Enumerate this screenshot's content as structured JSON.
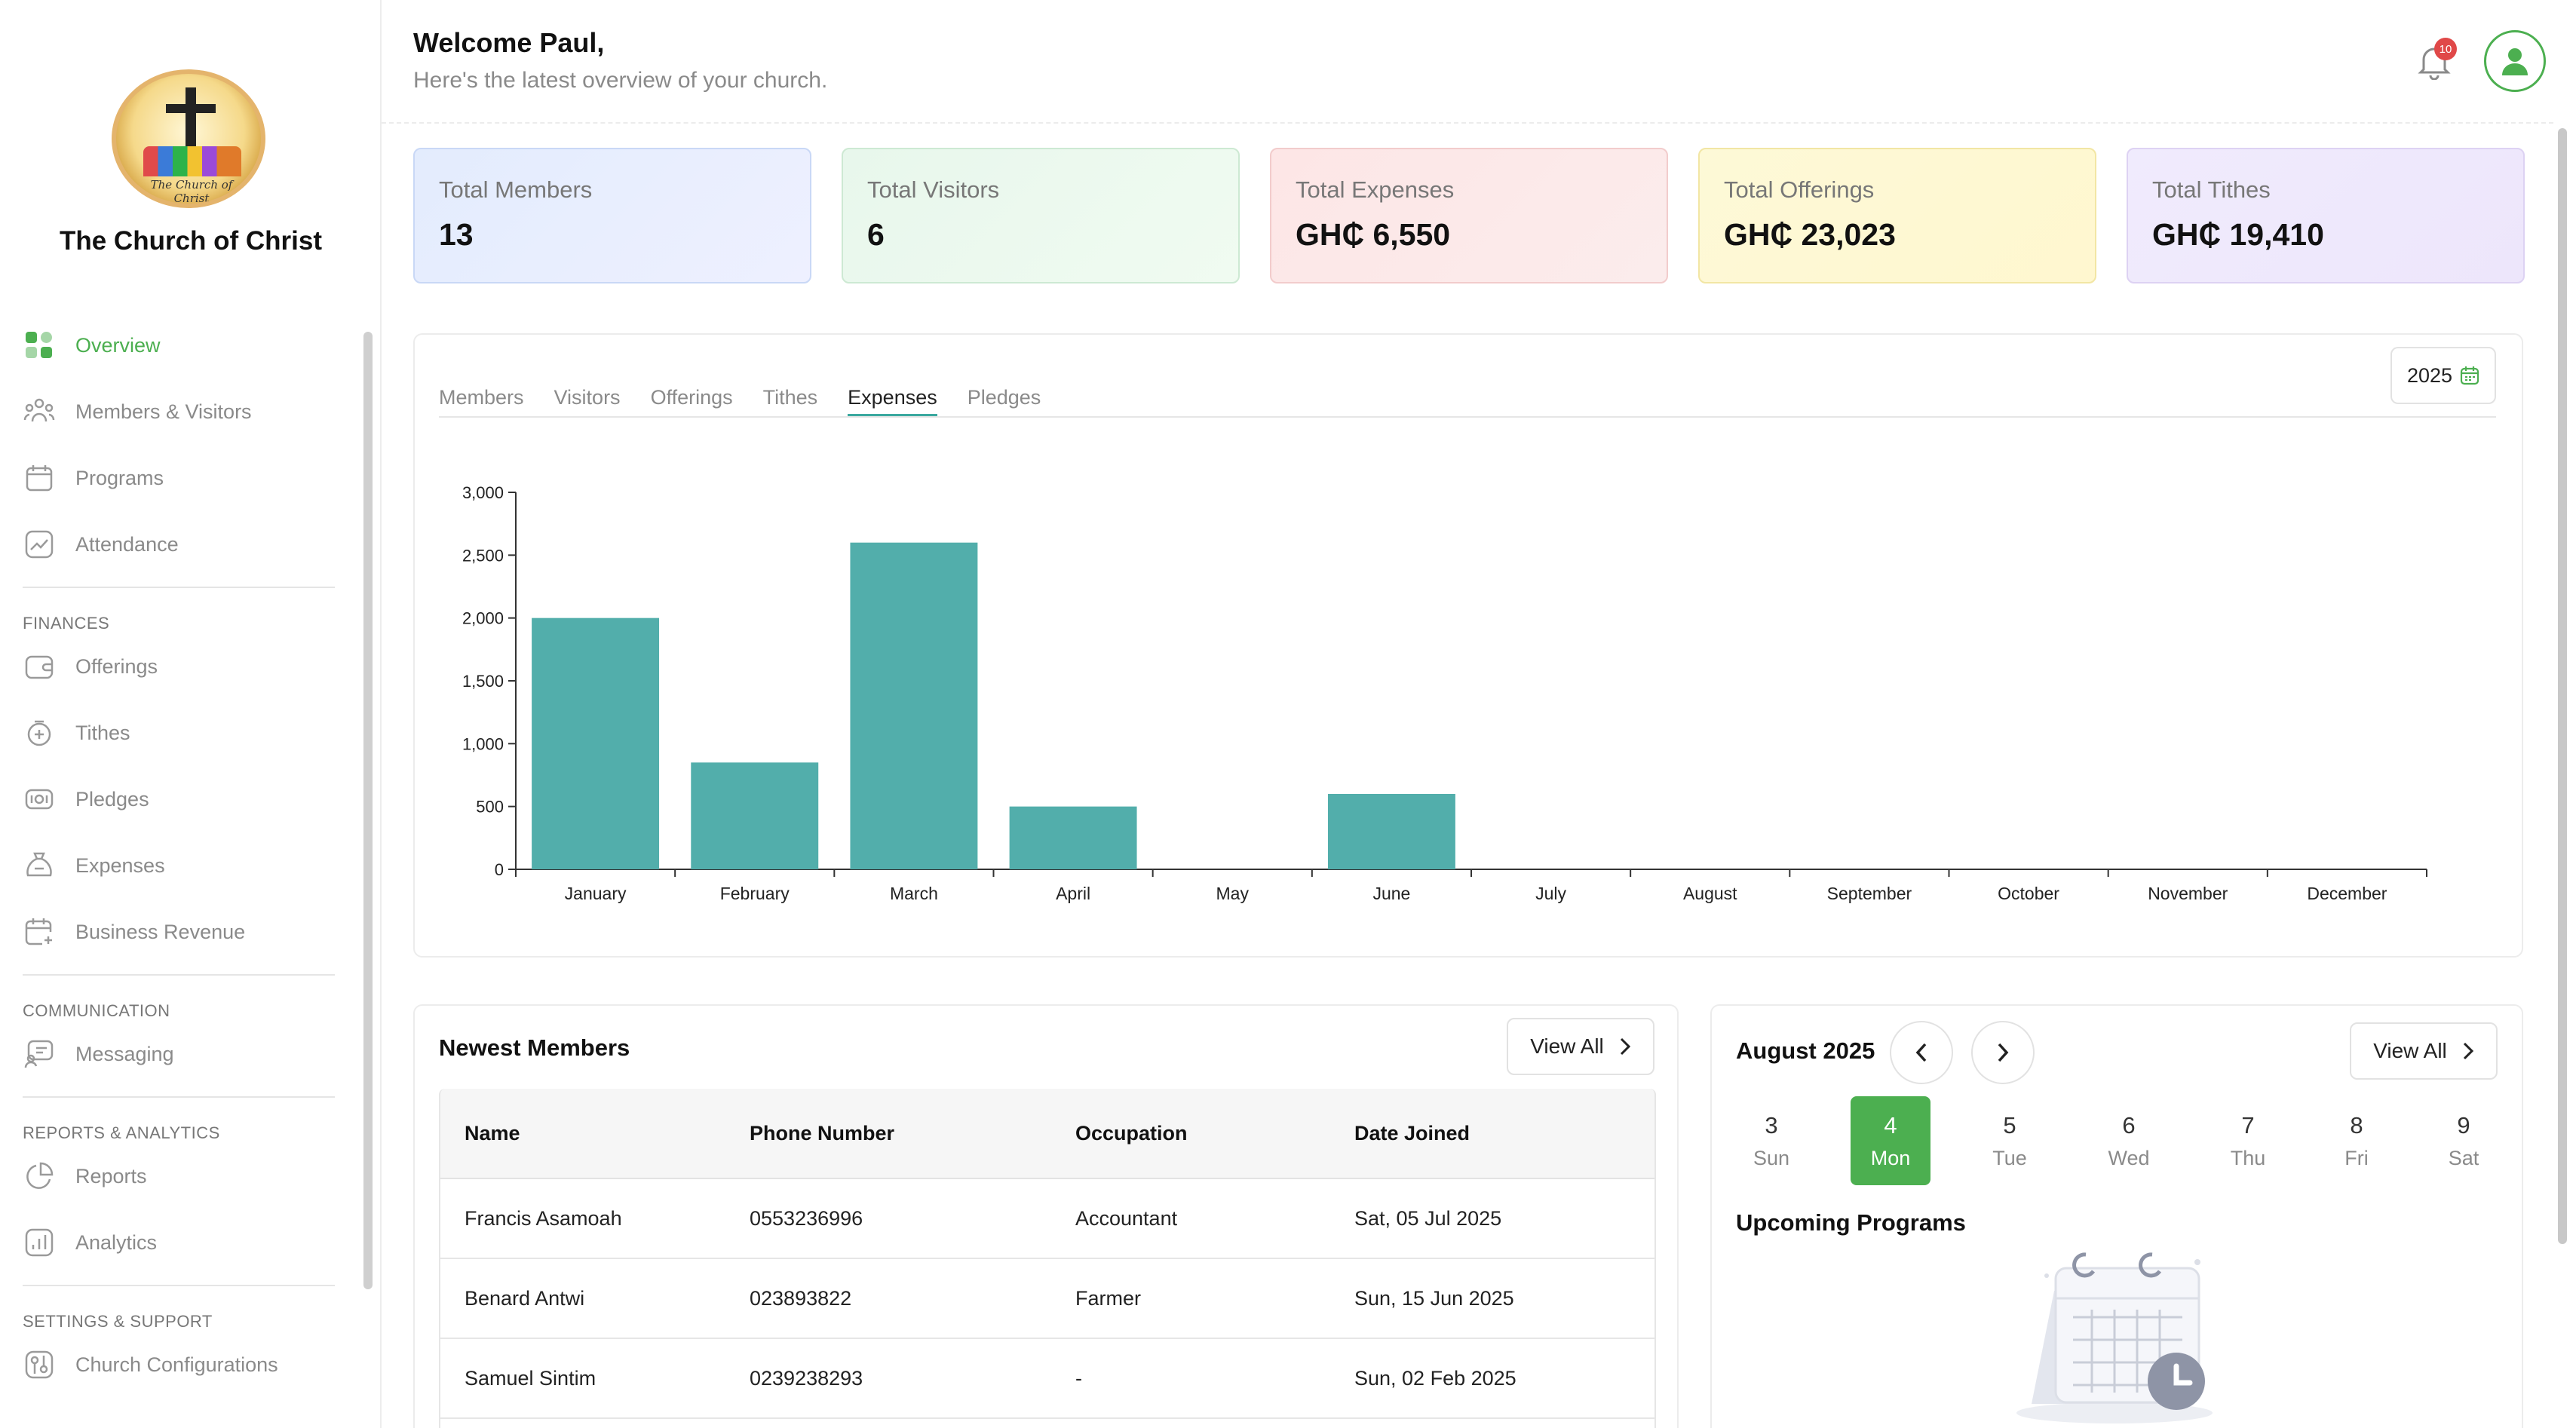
{
  "sidebar": {
    "logo_text": "The Church of Christ",
    "church_name": "The Church of Christ",
    "nav": [
      {
        "label": "Overview",
        "icon": "grid-icon",
        "active": true
      },
      {
        "label": "Members & Visitors",
        "icon": "people-icon"
      },
      {
        "label": "Programs",
        "icon": "calendar-icon"
      },
      {
        "label": "Attendance",
        "icon": "trend-icon"
      }
    ],
    "finances_label": "FINANCES",
    "finances": [
      {
        "label": "Offerings",
        "icon": "wallet-icon"
      },
      {
        "label": "Tithes",
        "icon": "coin-plus-icon"
      },
      {
        "label": "Pledges",
        "icon": "cash-icon"
      },
      {
        "label": "Expenses",
        "icon": "money-bag-icon"
      },
      {
        "label": "Business Revenue",
        "icon": "calendar-add-icon"
      }
    ],
    "communication_label": "COMMUNICATION",
    "communication": [
      {
        "label": "Messaging",
        "icon": "presentation-icon"
      }
    ],
    "reports_label": "REPORTS & ANALYTICS",
    "reports": [
      {
        "label": "Reports",
        "icon": "pie-icon"
      },
      {
        "label": "Analytics",
        "icon": "bar-chart-icon"
      }
    ],
    "settings_label": "SETTINGS & SUPPORT",
    "settings": [
      {
        "label": "Church Configurations",
        "icon": "settings-icon"
      }
    ]
  },
  "header": {
    "welcome": "Welcome Paul,",
    "subtitle": "Here's the latest overview of your church.",
    "notification_count": "10"
  },
  "stats": [
    {
      "label": "Total Members",
      "value": "13"
    },
    {
      "label": "Total Visitors",
      "value": "6"
    },
    {
      "label": "Total Expenses",
      "value": "GH₵ 6,550"
    },
    {
      "label": "Total Offerings",
      "value": "GH₵ 23,023"
    },
    {
      "label": "Total Tithes",
      "value": "GH₵ 19,410"
    }
  ],
  "chart_tabs": [
    "Members",
    "Visitors",
    "Offerings",
    "Tithes",
    "Expenses",
    "Pledges"
  ],
  "active_chart_tab": "Expenses",
  "year": "2025",
  "chart_data": {
    "type": "bar",
    "categories": [
      "January",
      "February",
      "March",
      "April",
      "May",
      "June",
      "July",
      "August",
      "September",
      "October",
      "November",
      "December"
    ],
    "values": [
      2000,
      850,
      2600,
      500,
      0,
      600,
      0,
      0,
      0,
      0,
      0,
      0
    ],
    "yticks": [
      0,
      500,
      1000,
      1500,
      2000,
      2500,
      3000
    ],
    "ytick_labels": [
      "0",
      "500",
      "1,000",
      "1,500",
      "2,000",
      "2,500",
      "3,000"
    ],
    "ylim": [
      0,
      3000
    ],
    "bar_color": "#52aeab"
  },
  "members": {
    "title": "Newest Members",
    "view_all": "View All",
    "columns": [
      "Name",
      "Phone Number",
      "Occupation",
      "Date Joined"
    ],
    "rows": [
      [
        "Francis Asamoah",
        "0553236996",
        "Accountant",
        "Sat, 05 Jul 2025"
      ],
      [
        "Benard Antwi",
        "023893822",
        "Farmer",
        "Sun, 15 Jun 2025"
      ],
      [
        "Samuel Sintim",
        "0239238293",
        "-",
        "Sun, 02 Feb 2025"
      ]
    ]
  },
  "calendar": {
    "month": "August 2025",
    "view_all": "View All",
    "days": [
      {
        "num": "3",
        "name": "Sun"
      },
      {
        "num": "4",
        "name": "Mon",
        "active": true
      },
      {
        "num": "5",
        "name": "Tue"
      },
      {
        "num": "6",
        "name": "Wed"
      },
      {
        "num": "7",
        "name": "Thu"
      },
      {
        "num": "8",
        "name": "Fri"
      },
      {
        "num": "9",
        "name": "Sat"
      }
    ],
    "upcoming_title": "Upcoming Programs"
  },
  "colors": {
    "accent": "#4caf50",
    "bar": "#52aeab",
    "badge": "#e04848"
  }
}
